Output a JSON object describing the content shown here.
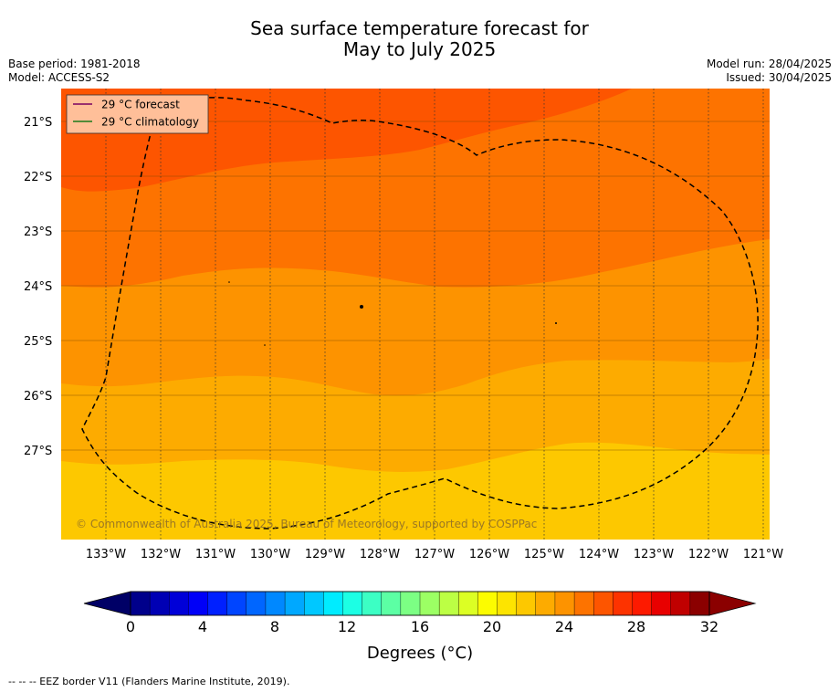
{
  "title": {
    "line1": "Sea surface temperature forecast for",
    "line2": "May to July 2025"
  },
  "meta": {
    "base_period": "Base period: 1981-2018",
    "model": "Model: ACCESS-S2",
    "model_run": "Model run: 28/04/2025",
    "issued": "Issued: 30/04/2025"
  },
  "map": {
    "lon_range": [
      -133.8,
      -120.9
    ],
    "lat_range": [
      -28.95,
      -20.6
    ],
    "lon_ticks": [
      "133°W",
      "132°W",
      "131°W",
      "130°W",
      "129°W",
      "128°W",
      "127°W",
      "126°W",
      "125°W",
      "124°W",
      "123°W",
      "122°W",
      "121°W"
    ],
    "lat_ticks": [
      "21°S",
      "22°S",
      "23°S",
      "24°S",
      "25°S",
      "26°S",
      "27°S"
    ],
    "legend": {
      "forecast": "29 °C  forecast",
      "climatology": "29 °C  climatology",
      "forecast_color": "#7a0060",
      "climatology_color": "#1a7a1a",
      "background": "#ffbf99"
    },
    "copyright": "© Commonwealth of Australia 2025, Bureau of Meteorology, supported by COSPPac",
    "sst_band_colors": [
      "#fdc800",
      "#fdab00",
      "#fd9300",
      "#fd7300",
      "#fd5500"
    ]
  },
  "colorbar": {
    "ticks": [
      "0",
      "4",
      "8",
      "12",
      "16",
      "20",
      "24",
      "28",
      "32"
    ],
    "label": "Degrees (°C)",
    "colors": [
      "#00008b",
      "#0000b4",
      "#0000d8",
      "#0000f8",
      "#0020ff",
      "#0045ff",
      "#0066ff",
      "#0088ff",
      "#00a8ff",
      "#00c8ff",
      "#00ecff",
      "#1cffe4",
      "#3cffc4",
      "#5cffa4",
      "#7cff84",
      "#9cff64",
      "#bcff44",
      "#dcff24",
      "#fcfc00",
      "#fde400",
      "#fdc800",
      "#fdab00",
      "#fd9300",
      "#fd7300",
      "#fd5500",
      "#fd3300",
      "#fd1a00",
      "#e80000",
      "#c00000",
      "#8b0000"
    ],
    "under_color": "#000066",
    "over_color": "#8b0000"
  },
  "footer": "--  --  -- EEZ border V11 (Flanders Marine Institute, 2019)."
}
